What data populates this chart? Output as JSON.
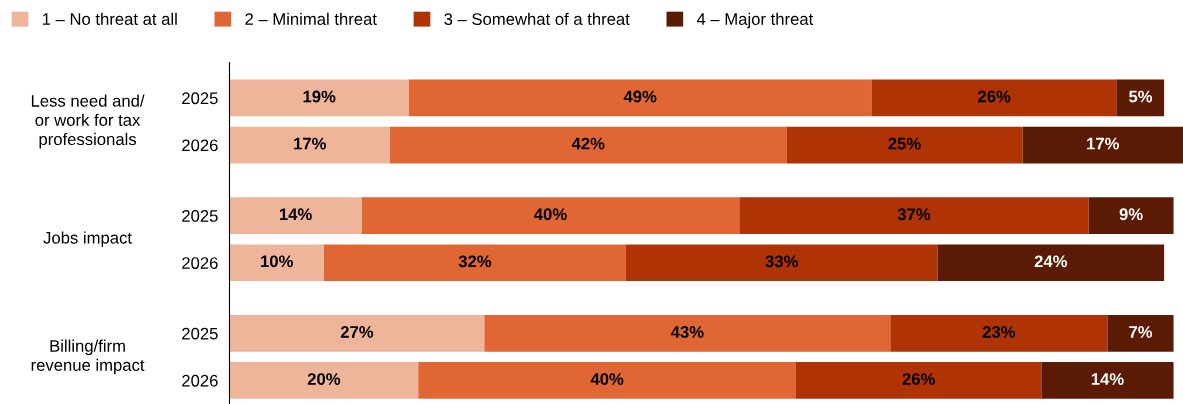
{
  "chart_data": {
    "type": "bar",
    "orientation": "horizontal",
    "stacked": true,
    "legend": "top left",
    "categories": [
      "2025",
      "2026",
      "2025",
      "2026",
      "2025",
      "2026"
    ],
    "annotations": [
      "Less need and/\nor work for tax\nprofessionals",
      "Jobs impact",
      "Billing/firm\nrevenue impact"
    ],
    "series": [
      {
        "name": "1 – No threat at all",
        "color": "#efb59a",
        "values": [
          19,
          17,
          14,
          10,
          27,
          20
        ],
        "value_labels": [
          "19%",
          "17%",
          "14%",
          "10%",
          "27%",
          "20%"
        ]
      },
      {
        "name": "2 – Minimal threat",
        "color": "#e06733",
        "values": [
          49,
          42,
          40,
          32,
          43,
          40
        ],
        "value_labels": [
          "49%",
          "42%",
          "40%",
          "32%",
          "43%",
          "40%"
        ]
      },
      {
        "name": "3 – Somewhat of a threat",
        "color": "#b03305",
        "values": [
          26,
          25,
          37,
          33,
          23,
          26
        ],
        "value_labels": [
          "26%",
          "25%",
          "37%",
          "33%",
          "23%",
          "26%"
        ]
      },
      {
        "name": "4 – Major threat",
        "color": "#5a1a04",
        "values": [
          5,
          17,
          9,
          24,
          7,
          14
        ],
        "value_labels": [
          "5%",
          "17%",
          "9%",
          "24%",
          "7%",
          "14%"
        ]
      }
    ]
  }
}
